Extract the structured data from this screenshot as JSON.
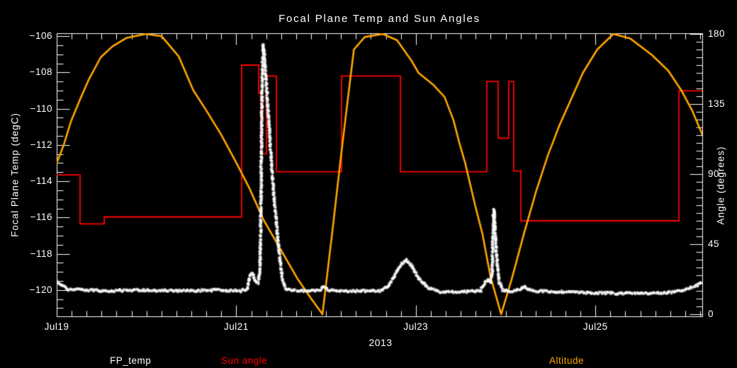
{
  "title": "Focal Plane Temp and Sun Angles",
  "colors": {
    "background": "#000000",
    "axis": "#FFFFFF",
    "fp_temp": "#FFFFFF",
    "sun_angle": "#FF0000",
    "altitude": "#FFA500"
  },
  "axes": {
    "x": {
      "year_label": "2013",
      "ticks": [
        {
          "label": "Jul19",
          "t": 0
        },
        {
          "label": "Jul21",
          "t": 2
        },
        {
          "label": "Jul23",
          "t": 4
        },
        {
          "label": "Jul25",
          "t": 6
        }
      ],
      "range": [
        0,
        7.19
      ],
      "minor_step_days": 0.16667
    },
    "left": {
      "label": "Focal Plane Temp (degC)",
      "tick_labels": [
        "−106",
        "−108",
        "−110",
        "−112",
        "−114",
        "−116",
        "−118",
        "−120"
      ],
      "tick_values": [
        -106,
        -108,
        -110,
        -112,
        -114,
        -116,
        -118,
        -120
      ],
      "range": [
        -121.45,
        -105.84
      ],
      "minor_step": 0.5
    },
    "right": {
      "label": "Angle (degrees)",
      "tick_labels": [
        "0",
        "45",
        "90",
        "135",
        "180"
      ],
      "tick_values": [
        0,
        45,
        90,
        135,
        180
      ],
      "range": [
        -1.36,
        180.45
      ],
      "minor_step": 5
    }
  },
  "legend": [
    {
      "label": "FP_temp",
      "color": "#FFFFFF"
    },
    {
      "label": "Sun angle",
      "color": "#FF0000"
    },
    {
      "label": "Altitude",
      "color": "#FFA500"
    }
  ],
  "chart_data": {
    "type": "mixed",
    "x_unit": "days since Jul 19 2013 00:00 UT",
    "title": "Focal Plane Temp and Sun Angles",
    "xlabel": "2013",
    "ylabel_left": "Focal Plane Temp (degC)",
    "ylabel_right": "Angle (degrees)",
    "series": [
      {
        "name": "FP_temp",
        "axis": "left",
        "style": "scatter-asterisk",
        "color": "#FFFFFF",
        "points": [
          [
            0,
            -119.5
          ],
          [
            0.06,
            -119.75
          ],
          [
            0.12,
            -119.95
          ],
          [
            0.3,
            -120.0
          ],
          [
            0.6,
            -120.05
          ],
          [
            1.0,
            -120.0
          ],
          [
            1.4,
            -120.05
          ],
          [
            1.8,
            -120.0
          ],
          [
            2.05,
            -120.05
          ],
          [
            2.12,
            -119.95
          ],
          [
            2.15,
            -119.25
          ],
          [
            2.18,
            -119.1
          ],
          [
            2.21,
            -119.5
          ],
          [
            2.24,
            -119.6
          ],
          [
            2.265,
            -119.0
          ],
          [
            2.275,
            -115.0
          ],
          [
            2.283,
            -111.0
          ],
          [
            2.292,
            -108.0
          ],
          [
            2.3,
            -106.45
          ],
          [
            2.315,
            -107.2
          ],
          [
            2.33,
            -108.3
          ],
          [
            2.35,
            -109.8
          ],
          [
            2.37,
            -111.3
          ],
          [
            2.39,
            -112.9
          ],
          [
            2.42,
            -114.8
          ],
          [
            2.45,
            -116.5
          ],
          [
            2.48,
            -118.0
          ],
          [
            2.51,
            -119.3
          ],
          [
            2.55,
            -119.95
          ],
          [
            2.7,
            -120.05
          ],
          [
            2.93,
            -120.0
          ],
          [
            2.97,
            -119.8
          ],
          [
            3.02,
            -120.0
          ],
          [
            3.3,
            -120.05
          ],
          [
            3.6,
            -120.05
          ],
          [
            3.68,
            -119.85
          ],
          [
            3.76,
            -119.25
          ],
          [
            3.83,
            -118.6
          ],
          [
            3.89,
            -118.35
          ],
          [
            3.95,
            -118.65
          ],
          [
            4.03,
            -119.35
          ],
          [
            4.13,
            -119.85
          ],
          [
            4.25,
            -120.1
          ],
          [
            4.5,
            -120.1
          ],
          [
            4.72,
            -120.05
          ],
          [
            4.77,
            -119.6
          ],
          [
            4.8,
            -119.45
          ],
          [
            4.83,
            -119.55
          ],
          [
            4.85,
            -119.2
          ],
          [
            4.858,
            -117.3
          ],
          [
            4.868,
            -115.55
          ],
          [
            4.878,
            -116.3
          ],
          [
            4.89,
            -117.4
          ],
          [
            4.905,
            -118.6
          ],
          [
            4.93,
            -119.6
          ],
          [
            4.97,
            -120.0
          ],
          [
            5.05,
            -120.1
          ],
          [
            5.17,
            -119.95
          ],
          [
            5.21,
            -119.8
          ],
          [
            5.28,
            -120.05
          ],
          [
            5.6,
            -120.1
          ],
          [
            6.0,
            -120.15
          ],
          [
            6.4,
            -120.2
          ],
          [
            6.8,
            -120.15
          ],
          [
            6.95,
            -120.05
          ],
          [
            7.05,
            -119.9
          ],
          [
            7.12,
            -119.75
          ],
          [
            7.19,
            -119.6
          ]
        ]
      },
      {
        "name": "Sun angle",
        "axis": "right",
        "style": "step",
        "color": "#FF0000",
        "points": [
          [
            0,
            89.5
          ],
          [
            0.26,
            58
          ],
          [
            0.53,
            62.5
          ],
          [
            2.06,
            160
          ],
          [
            2.25,
            142
          ],
          [
            2.273,
            103
          ],
          [
            2.336,
            153
          ],
          [
            2.447,
            91.5
          ],
          [
            3.173,
            153
          ],
          [
            3.828,
            91.5
          ],
          [
            4.79,
            149.5
          ],
          [
            4.917,
            113
          ],
          [
            5.035,
            149.5
          ],
          [
            5.09,
            92
          ],
          [
            5.17,
            60
          ],
          [
            6.93,
            143.5
          ],
          [
            7.19,
            143.5
          ]
        ]
      },
      {
        "name": "Altitude",
        "axis": "right",
        "style": "line",
        "color": "#FFA500",
        "points": [
          [
            0,
            97
          ],
          [
            0.08,
            109
          ],
          [
            0.16,
            124
          ],
          [
            0.26,
            138
          ],
          [
            0.36,
            151
          ],
          [
            0.49,
            165
          ],
          [
            0.62,
            172
          ],
          [
            0.78,
            177.5
          ],
          [
            0.99,
            180
          ],
          [
            1.17,
            178.5
          ],
          [
            1.36,
            165.5
          ],
          [
            1.52,
            144
          ],
          [
            1.67,
            130.5
          ],
          [
            1.83,
            115.5
          ],
          [
            1.99,
            98.5
          ],
          [
            2.15,
            80.5
          ],
          [
            2.3,
            61
          ],
          [
            2.53,
            38
          ],
          [
            2.68,
            23
          ],
          [
            2.84,
            9.5
          ],
          [
            2.96,
            0
          ],
          [
            3.08,
            58
          ],
          [
            3.16,
            98.5
          ],
          [
            3.24,
            137
          ],
          [
            3.31,
            170
          ],
          [
            3.43,
            178
          ],
          [
            3.63,
            180
          ],
          [
            3.79,
            176
          ],
          [
            3.95,
            163
          ],
          [
            4.03,
            155
          ],
          [
            4.2,
            147
          ],
          [
            4.32,
            139.5
          ],
          [
            4.42,
            124.5
          ],
          [
            4.48,
            111
          ],
          [
            4.55,
            97
          ],
          [
            4.66,
            70
          ],
          [
            4.74,
            52
          ],
          [
            4.83,
            24.5
          ],
          [
            4.95,
            0
          ],
          [
            5.07,
            23
          ],
          [
            5.21,
            53
          ],
          [
            5.34,
            79
          ],
          [
            5.47,
            102
          ],
          [
            5.6,
            121.5
          ],
          [
            5.74,
            139.5
          ],
          [
            5.86,
            155
          ],
          [
            6.02,
            170
          ],
          [
            6.2,
            180
          ],
          [
            6.39,
            177
          ],
          [
            6.63,
            166.5
          ],
          [
            6.81,
            156.5
          ],
          [
            6.96,
            143.5
          ],
          [
            7.08,
            130.5
          ],
          [
            7.19,
            115.5
          ]
        ]
      }
    ]
  }
}
